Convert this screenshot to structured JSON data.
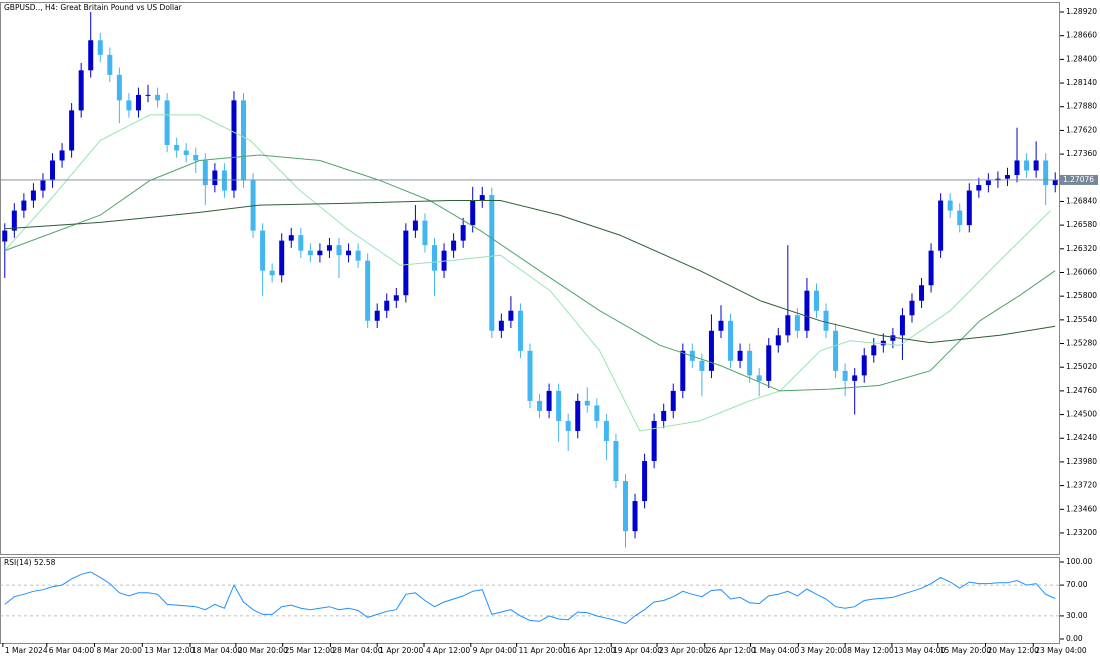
{
  "chart_data": [
    {
      "type": "candlestick",
      "title": "GBPUSD.., H4:  Great Britain Pound vs US Dollar",
      "xlim": [
        -0.5,
        110.5
      ],
      "xticks": [
        {
          "value": -0.2,
          "label": "1 Mar 2024"
        },
        {
          "value": 4.4,
          "label": "6 Mar 04:00"
        },
        {
          "value": 9.4,
          "label": "8 Mar 20:00"
        },
        {
          "value": 14.4,
          "label": "13 Mar 12:00"
        },
        {
          "value": 19.4,
          "label": "18 Mar 04:00"
        },
        {
          "value": 24.2,
          "label": "20 Mar 20:00"
        },
        {
          "value": 29.1,
          "label": "25 Mar 12:00"
        },
        {
          "value": 34.1,
          "label": "28 Mar 04:00"
        },
        {
          "value": 39,
          "label": "1 Apr 20:00"
        },
        {
          "value": 43.9,
          "label": "4 Apr 12:00"
        },
        {
          "value": 48.8,
          "label": "9 Apr 04:00"
        },
        {
          "value": 53.6,
          "label": "11 Apr 20:00"
        },
        {
          "value": 58.6,
          "label": "16 Apr 12:00"
        },
        {
          "value": 63.5,
          "label": "19 Apr 04:00"
        },
        {
          "value": 68.3,
          "label": "23 Apr 20:00"
        },
        {
          "value": 73.3,
          "label": "26 Apr 12:00"
        },
        {
          "value": 78.1,
          "label": "1 May 04:00"
        },
        {
          "value": 83.1,
          "label": "3 May 20:00"
        },
        {
          "value": 88,
          "label": "8 May 12:00"
        },
        {
          "value": 92.9,
          "label": "13 May 04:00"
        },
        {
          "value": 97.7,
          "label": "15 May 20:00"
        },
        {
          "value": 102.7,
          "label": "20 May 12:00"
        },
        {
          "value": 107.7,
          "label": "23 May 04:00"
        }
      ],
      "ylim": [
        1.22958,
        1.2903
      ],
      "yticks": [
        {
          "value": 1.2892,
          "label": "1.28920"
        },
        {
          "value": 1.2866,
          "label": "1.28660"
        },
        {
          "value": 1.284,
          "label": "1.28400"
        },
        {
          "value": 1.2814,
          "label": "1.28140"
        },
        {
          "value": 1.2788,
          "label": "1.27880"
        },
        {
          "value": 1.2762,
          "label": "1.27620"
        },
        {
          "value": 1.2736,
          "label": "1.27360"
        },
        {
          "value": 1.2684,
          "label": "1.26840"
        },
        {
          "value": 1.2658,
          "label": "1.26580"
        },
        {
          "value": 1.2632,
          "label": "1.26320"
        },
        {
          "value": 1.2606,
          "label": "1.26060"
        },
        {
          "value": 1.258,
          "label": "1.25800"
        },
        {
          "value": 1.2554,
          "label": "1.25540"
        },
        {
          "value": 1.2528,
          "label": "1.25280"
        },
        {
          "value": 1.2502,
          "label": "1.25020"
        },
        {
          "value": 1.2476,
          "label": "1.24760"
        },
        {
          "value": 1.245,
          "label": "1.24500"
        },
        {
          "value": 1.2424,
          "label": "1.24240"
        },
        {
          "value": 1.2398,
          "label": "1.23980"
        },
        {
          "value": 1.2372,
          "label": "1.23720"
        },
        {
          "value": 1.2346,
          "label": "1.23460"
        },
        {
          "value": 1.232,
          "label": "1.23200"
        }
      ],
      "up_color": "#0000cd",
      "down_color": "#41b6f0",
      "open": [
        1.264,
        1.2652,
        1.2674,
        1.2685,
        1.2696,
        1.2707,
        1.2729,
        1.274,
        1.2784,
        1.2828,
        1.2861,
        1.2845,
        1.2823,
        1.2795,
        1.2784,
        1.2801,
        1.2801,
        1.2795,
        1.2746,
        1.274,
        1.2735,
        1.2729,
        1.2702,
        1.2718,
        1.2696,
        1.2795,
        1.2707,
        1.2652,
        1.2608,
        1.2603,
        1.2641,
        1.2647,
        1.263,
        1.2625,
        1.263,
        1.2636,
        1.2625,
        1.263,
        1.2619,
        1.2553,
        1.2564,
        1.2575,
        1.2581,
        1.2652,
        1.2663,
        1.2636,
        1.2608,
        1.263,
        1.2641,
        1.2658,
        1.2685,
        1.2691,
        1.2542,
        1.2553,
        1.2564,
        1.252,
        1.2465,
        1.2454,
        1.2476,
        1.2443,
        1.2432,
        1.2465,
        1.246,
        1.2443,
        1.2421,
        1.2377,
        1.2322,
        1.2355,
        1.2399,
        1.2443,
        1.2454,
        1.2476,
        1.252,
        1.2509,
        1.2498,
        1.2542,
        1.2553,
        1.2509,
        1.252,
        1.2493,
        1.2487,
        1.2526,
        1.2537,
        1.2559,
        1.2542,
        1.2586,
        1.2564,
        1.2542,
        1.2498,
        1.2487,
        1.2493,
        1.2515,
        1.2526,
        1.2531,
        1.2537,
        1.2559,
        1.2575,
        1.2592,
        1.263,
        1.2685,
        1.2674,
        1.2658,
        1.2696,
        1.2702,
        1.2707,
        1.2709,
        1.2713,
        1.2729,
        1.2718,
        1.2729,
        1.2702
      ],
      "high": [
        1.266,
        1.2682,
        1.2693,
        1.2704,
        1.2715,
        1.2737,
        1.2748,
        1.2792,
        1.2836,
        1.2892,
        1.2869,
        1.2853,
        1.2831,
        1.2803,
        1.2809,
        1.2812,
        1.2809,
        1.2803,
        1.2754,
        1.2748,
        1.2743,
        1.2737,
        1.2726,
        1.2726,
        1.2805,
        1.2803,
        1.2715,
        1.266,
        1.2616,
        1.2649,
        1.2655,
        1.2655,
        1.2638,
        1.2638,
        1.2644,
        1.2644,
        1.2638,
        1.2638,
        1.2627,
        1.2572,
        1.2583,
        1.2589,
        1.266,
        1.268,
        1.2671,
        1.2644,
        1.2638,
        1.2649,
        1.2666,
        1.27,
        1.27,
        1.2699,
        1.2561,
        1.258,
        1.2572,
        1.2528,
        1.2473,
        1.2484,
        1.2484,
        1.2451,
        1.2473,
        1.248,
        1.2468,
        1.2451,
        1.2429,
        1.2385,
        1.2363,
        1.2407,
        1.2451,
        1.2462,
        1.2484,
        1.2528,
        1.2528,
        1.2517,
        1.256,
        1.257,
        1.2561,
        1.2528,
        1.2528,
        1.2501,
        1.2534,
        1.2545,
        1.2636,
        1.2567,
        1.26,
        1.2594,
        1.2572,
        1.255,
        1.2506,
        1.2501,
        1.2523,
        1.2534,
        1.2539,
        1.2545,
        1.2567,
        1.2583,
        1.26,
        1.2638,
        1.2693,
        1.2693,
        1.2682,
        1.2704,
        1.271,
        1.2715,
        1.2717,
        1.2721,
        1.2765,
        1.2737,
        1.275,
        1.2737,
        1.2716
      ],
      "low": [
        1.26,
        1.2644,
        1.2666,
        1.2677,
        1.2688,
        1.2699,
        1.2721,
        1.2732,
        1.2776,
        1.282,
        1.2837,
        1.2815,
        1.277,
        1.2776,
        1.2776,
        1.2793,
        1.2787,
        1.2738,
        1.2732,
        1.2727,
        1.2715,
        1.268,
        1.2694,
        1.2688,
        1.2688,
        1.2699,
        1.2644,
        1.258,
        1.2595,
        1.2595,
        1.2633,
        1.2622,
        1.2617,
        1.2617,
        1.2622,
        1.26,
        1.2617,
        1.2611,
        1.2545,
        1.2545,
        1.2556,
        1.2567,
        1.2573,
        1.2644,
        1.2628,
        1.258,
        1.26,
        1.2622,
        1.2633,
        1.265,
        1.2677,
        1.2534,
        1.2534,
        1.2545,
        1.2512,
        1.2457,
        1.2446,
        1.2446,
        1.242,
        1.241,
        1.2424,
        1.2452,
        1.2435,
        1.24,
        1.2369,
        1.2304,
        1.2314,
        1.2347,
        1.2391,
        1.2435,
        1.2446,
        1.2468,
        1.2501,
        1.247,
        1.249,
        1.2534,
        1.2501,
        1.2501,
        1.2485,
        1.247,
        1.2479,
        1.2518,
        1.2529,
        1.2534,
        1.2534,
        1.2556,
        1.2534,
        1.249,
        1.247,
        1.245,
        1.2485,
        1.2507,
        1.2518,
        1.2523,
        1.251,
        1.2551,
        1.2567,
        1.2584,
        1.2622,
        1.2666,
        1.265,
        1.265,
        1.2688,
        1.2694,
        1.2699,
        1.2701,
        1.2705,
        1.271,
        1.271,
        1.268,
        1.2694
      ],
      "close": [
        1.2652,
        1.2674,
        1.2685,
        1.2696,
        1.2707,
        1.2729,
        1.274,
        1.2784,
        1.2828,
        1.2861,
        1.2845,
        1.2823,
        1.2795,
        1.2784,
        1.2801,
        1.2801,
        1.2795,
        1.2746,
        1.274,
        1.2735,
        1.2729,
        1.2702,
        1.2718,
        1.2696,
        1.2795,
        1.2707,
        1.2652,
        1.2608,
        1.2603,
        1.2641,
        1.2647,
        1.263,
        1.2625,
        1.263,
        1.2636,
        1.2625,
        1.263,
        1.2619,
        1.2553,
        1.2564,
        1.2575,
        1.2581,
        1.2652,
        1.2663,
        1.2636,
        1.2608,
        1.263,
        1.2641,
        1.2658,
        1.2685,
        1.2691,
        1.2542,
        1.2553,
        1.2564,
        1.252,
        1.2465,
        1.2454,
        1.2476,
        1.2443,
        1.2432,
        1.2465,
        1.246,
        1.2443,
        1.2421,
        1.2377,
        1.2322,
        1.2355,
        1.2399,
        1.2443,
        1.2454,
        1.2476,
        1.252,
        1.2509,
        1.2498,
        1.2542,
        1.2553,
        1.2509,
        1.252,
        1.2493,
        1.2487,
        1.2526,
        1.2537,
        1.2559,
        1.2542,
        1.2586,
        1.2564,
        1.2542,
        1.2498,
        1.2487,
        1.2493,
        1.2515,
        1.2526,
        1.2531,
        1.2537,
        1.2559,
        1.2575,
        1.2592,
        1.263,
        1.2685,
        1.2674,
        1.2658,
        1.2696,
        1.2702,
        1.2707,
        1.2709,
        1.2713,
        1.2729,
        1.2718,
        1.2729,
        1.2702,
        1.27076
      ],
      "moving_averages": [
        {
          "color": "#98e4b4",
          "x": [
            0,
            4.7,
            10,
            15.2,
            20.4,
            25.7,
            30.9,
            36.1,
            41.4,
            46.6,
            51.9,
            57.1,
            62.3,
            66.5,
            72.8,
            78,
            81.2,
            85.4,
            88.5,
            93.7,
            99,
            104.2,
            109.5
          ],
          "values": [
            1.263,
            1.2685,
            1.2751,
            1.2779,
            1.2779,
            1.2751,
            1.2696,
            1.2652,
            1.2614,
            1.2619,
            1.2625,
            1.2586,
            1.252,
            1.2432,
            1.2443,
            1.2465,
            1.2476,
            1.252,
            1.2531,
            1.2526,
            1.2564,
            1.2619,
            1.2674
          ]
        },
        {
          "color": "#4fa36a",
          "x": [
            0,
            10,
            15.2,
            20.4,
            26.7,
            33,
            39.3,
            44.5,
            49.8,
            56,
            62.3,
            68.6,
            74.9,
            81.2,
            86.4,
            91.6,
            96.9,
            102.1,
            106.3,
            110
          ],
          "values": [
            1.263,
            1.2669,
            1.2707,
            1.2729,
            1.2735,
            1.2729,
            1.2707,
            1.2685,
            1.2652,
            1.2608,
            1.2564,
            1.2526,
            1.2504,
            1.2476,
            1.2478,
            1.2482,
            1.2498,
            1.2553,
            1.2581,
            1.2608
          ]
        },
        {
          "color": "#2d5e36",
          "x": [
            0,
            10,
            20.4,
            26.7,
            36.1,
            46.6,
            51.9,
            58.1,
            64.4,
            72.8,
            79.1,
            85.4,
            91.6,
            96.9,
            104.2,
            110
          ],
          "values": [
            1.2654,
            1.2661,
            1.2672,
            1.268,
            1.2682,
            1.2685,
            1.2685,
            1.2669,
            1.2647,
            1.2608,
            1.2575,
            1.2553,
            1.2537,
            1.2529,
            1.2537,
            1.2547
          ]
        }
      ]
    },
    {
      "type": "line",
      "title": "RSI(14)",
      "color": "#1e90ff",
      "xlim": [
        -0.5,
        110.5
      ],
      "ylim": [
        -5.2,
        106.5
      ],
      "yticks": [
        {
          "value": 100,
          "label": "100.00"
        },
        {
          "value": 70,
          "label": "70.00",
          "level": true
        },
        {
          "value": 30,
          "label": "30.00",
          "level": true
        },
        {
          "value": 0,
          "label": "0.00"
        }
      ],
      "values": [
        45,
        55,
        58,
        62,
        64,
        68,
        70,
        78,
        84,
        87,
        80,
        72,
        60,
        56,
        60,
        60,
        58,
        45,
        44,
        43,
        42,
        38,
        45,
        40,
        70,
        48,
        38,
        32,
        32,
        42,
        44,
        40,
        38,
        40,
        42,
        38,
        40,
        37,
        28,
        32,
        36,
        38,
        58,
        60,
        50,
        42,
        48,
        52,
        56,
        62,
        64,
        32,
        35,
        38,
        30,
        24,
        23,
        30,
        26,
        25,
        35,
        34,
        30,
        27,
        24,
        20,
        30,
        38,
        48,
        50,
        55,
        62,
        58,
        55,
        63,
        64,
        52,
        54,
        47,
        46,
        56,
        58,
        62,
        56,
        65,
        58,
        52,
        42,
        40,
        42,
        50,
        52,
        53,
        54,
        58,
        62,
        66,
        72,
        80,
        74,
        66,
        74,
        72,
        72,
        73,
        73,
        76,
        70,
        72,
        58,
        52.58
      ]
    }
  ]
}
